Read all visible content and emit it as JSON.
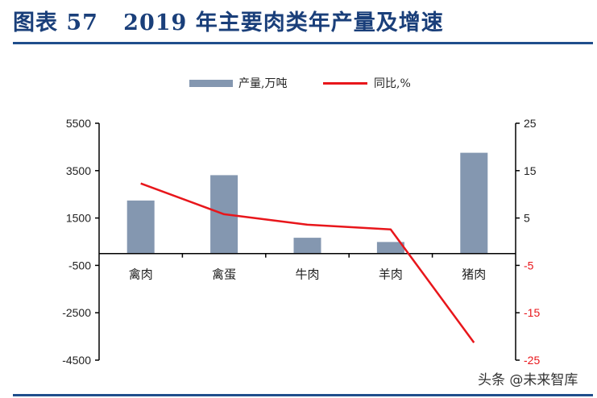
{
  "header": {
    "title": "图表 57   2019 年主要肉类年产量及增速"
  },
  "legend": {
    "bar_label": "产量,万吨",
    "line_label": "同比,%"
  },
  "watermark": "头条 @未来智库",
  "colors": {
    "bar": "#8497b0",
    "line": "#e8161b",
    "title": "#1a3f7a",
    "rule": "#1f4e8c",
    "negative_tick": "#e8161b"
  },
  "chart_data": {
    "type": "bar+line",
    "title": "2019 年主要肉类年产量及增速",
    "categories": [
      "禽肉",
      "禽蛋",
      "牛肉",
      "羊肉",
      "猪肉"
    ],
    "series": [
      {
        "name": "产量,万吨",
        "type": "bar",
        "axis": "left",
        "values": [
          2239,
          3309,
          667,
          488,
          4255
        ]
      },
      {
        "name": "同比,%",
        "type": "line",
        "axis": "right",
        "values": [
          12.3,
          5.8,
          3.6,
          2.6,
          -21.3
        ]
      }
    ],
    "left_axis": {
      "ylim": [
        -4500,
        5500
      ],
      "ticks": [
        5500,
        3500,
        1500,
        -500,
        -2500,
        -4500
      ],
      "tick_labels": [
        "5500",
        "3500",
        "1500",
        "-500",
        "-2500",
        "-4500"
      ]
    },
    "right_axis": {
      "ylim": [
        -25,
        25
      ],
      "ticks": [
        25,
        15,
        5,
        -5,
        -15,
        -25
      ],
      "tick_labels": [
        "25",
        "15",
        "5",
        "-5",
        "-15",
        "-25"
      ]
    },
    "xlabel": "",
    "ylabel": "",
    "grid": false,
    "legend_position": "top"
  }
}
